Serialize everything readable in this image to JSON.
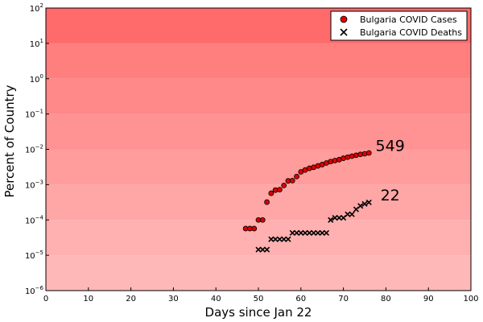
{
  "chart_data": {
    "type": "scatter",
    "title": "",
    "xlabel": "Days since Jan 22",
    "ylabel": "Percent of Country",
    "xlim": [
      0,
      100
    ],
    "ylim": [
      1e-06,
      100
    ],
    "yscale": "log",
    "grid": false,
    "legend_position": "top-right",
    "xticks": [
      0,
      10,
      20,
      30,
      40,
      50,
      60,
      70,
      80,
      90,
      100
    ],
    "yticks": [
      {
        "exp": "-6"
      },
      {
        "exp": "-5"
      },
      {
        "exp": "-4"
      },
      {
        "exp": "-3"
      },
      {
        "exp": "-2"
      },
      {
        "exp": "-1"
      },
      {
        "exp": "0"
      },
      {
        "exp": "1"
      },
      {
        "exp": "2"
      }
    ],
    "ytick_base": "10",
    "background_bands": [
      {
        "from": 1e-06,
        "to": 1e-05,
        "color": "#ffb8b8"
      },
      {
        "from": 1e-05,
        "to": 0.0001,
        "color": "#ffb0b0"
      },
      {
        "from": 0.0001,
        "to": 0.001,
        "color": "#ffa6a6"
      },
      {
        "from": 0.001,
        "to": 0.01,
        "color": "#ff9c9c"
      },
      {
        "from": 0.01,
        "to": 0.1,
        "color": "#ff9292"
      },
      {
        "from": 0.1,
        "to": 1,
        "color": "#ff8888"
      },
      {
        "from": 1,
        "to": 10,
        "color": "#ff7e7e"
      },
      {
        "from": 10,
        "to": 100,
        "color": "#ff6a6a"
      }
    ],
    "series": [
      {
        "name": "Bulgaria COVID Cases",
        "marker": "circle",
        "color": "#dd0000",
        "x": [
          47,
          48,
          49,
          50,
          51,
          52,
          53,
          54,
          55,
          56,
          57,
          58,
          59,
          60,
          61,
          62,
          63,
          64,
          65,
          66,
          67,
          68,
          69,
          70,
          71,
          72,
          73,
          74,
          75,
          76
        ],
        "y": [
          5.7e-05,
          5.7e-05,
          5.7e-05,
          0.0001,
          0.0001,
          0.00032,
          0.00057,
          0.0007,
          0.00072,
          0.00095,
          0.00128,
          0.0013,
          0.0017,
          0.0023,
          0.0026,
          0.0029,
          0.0031,
          0.0034,
          0.0037,
          0.0041,
          0.0045,
          0.0048,
          0.0051,
          0.0056,
          0.006,
          0.0064,
          0.0068,
          0.0072,
          0.0075,
          0.0079
        ]
      },
      {
        "name": "Bulgaria COVID Deaths",
        "marker": "x",
        "color": "#000000",
        "x": [
          50,
          51,
          52,
          53,
          54,
          55,
          56,
          57,
          58,
          59,
          60,
          61,
          62,
          63,
          64,
          65,
          66,
          67,
          68,
          69,
          70,
          71,
          72,
          73,
          74,
          75,
          76
        ],
        "y": [
          1.45e-05,
          1.45e-05,
          1.45e-05,
          2.85e-05,
          2.85e-05,
          2.85e-05,
          2.85e-05,
          2.85e-05,
          4.3e-05,
          4.3e-05,
          4.3e-05,
          4.3e-05,
          4.3e-05,
          4.3e-05,
          4.3e-05,
          4.3e-05,
          4.3e-05,
          0.0001,
          0.000115,
          0.000115,
          0.000115,
          0.000145,
          0.000145,
          0.0002,
          0.00025,
          0.000285,
          0.000315
        ]
      }
    ],
    "annotations": [
      {
        "text": "549",
        "x": 81,
        "y": 0.013
      },
      {
        "text": "22",
        "x": 81,
        "y": 0.00052
      }
    ]
  }
}
